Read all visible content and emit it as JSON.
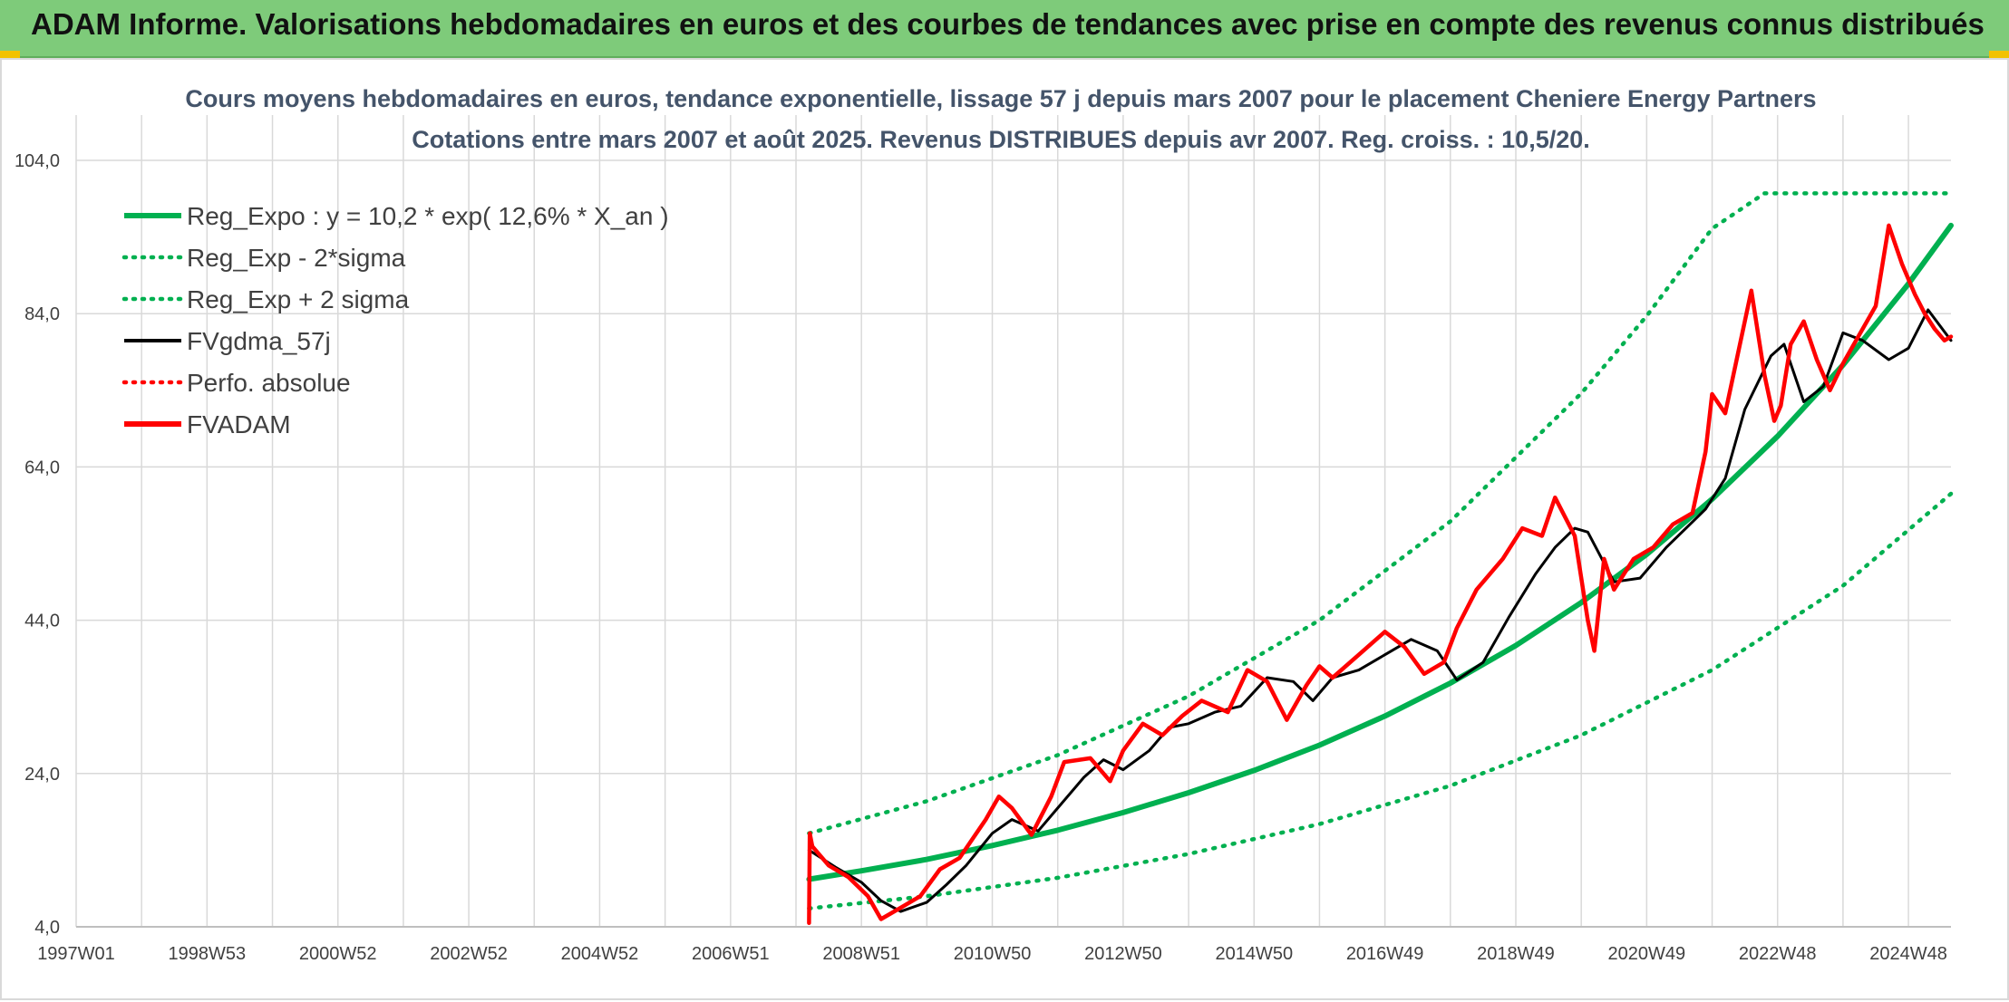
{
  "header": {
    "title": "ADAM Informe. Valorisations hebdomadaires en euros et des courbes de tendances avec prise en compte des revenus connus distribués"
  },
  "colors": {
    "header_bg": "#7ecb7a",
    "regression": "#00b050",
    "smoothed": "#000000",
    "fvadam": "#ff0000",
    "grid": "#d9d9d9"
  },
  "chart_data": {
    "type": "line",
    "title": "Cours moyens hebdomadaires en euros, tendance exponentielle, lissage 57 j depuis mars 2007 pour le placement Cheniere Energy Partners",
    "subtitle": "Cotations entre mars 2007 et août 2025. Revenus DISTRIBUES depuis avr 2007. Reg. croiss. : 10,5/20.",
    "xlabel": "",
    "ylabel": "",
    "x_range": [
      1997.0,
      2025.65
    ],
    "ylim": [
      4,
      104
    ],
    "y_ticks": [
      "4,0",
      "24,0",
      "44,0",
      "64,0",
      "84,0",
      "104,0"
    ],
    "y_tick_values": [
      4,
      24,
      44,
      64,
      84,
      104
    ],
    "x_ticks": [
      "1997W01",
      "1998W53",
      "2000W52",
      "2002W52",
      "2004W52",
      "2006W51",
      "2008W51",
      "2010W50",
      "2012W50",
      "2014W50",
      "2016W49",
      "2018W49",
      "2020W49",
      "2022W48",
      "2024W48"
    ],
    "x_tick_positions": [
      1997.0,
      1999.0,
      2001.0,
      2003.0,
      2005.0,
      2007.0,
      2009.0,
      2011.0,
      2013.0,
      2015.0,
      2017.0,
      2019.0,
      2021.0,
      2023.0,
      2025.0
    ],
    "grid": true,
    "legend_position": "top-left",
    "legend": [
      {
        "label": "Reg_Expo : y = 10,2 * exp( 12,6% *  X_an )",
        "color": "#00b050",
        "style": "solid-thick"
      },
      {
        "label": "Reg_Exp - 2*sigma",
        "color": "#00b050",
        "style": "dotted"
      },
      {
        "label": "Reg_Exp + 2 sigma",
        "color": "#00b050",
        "style": "dotted"
      },
      {
        "label": "FVgdma_57j",
        "color": "#000000",
        "style": "solid"
      },
      {
        "label": "Perfo. absolue",
        "color": "#ff0000",
        "style": "dotted"
      },
      {
        "label": "FVADAM",
        "color": "#ff0000",
        "style": "solid-thick"
      }
    ],
    "series": [
      {
        "name": "Reg_Expo : y = 10,2 * exp( 12,6% *  X_an )",
        "x": [
          2008.2,
          2009,
          2010,
          2011,
          2012,
          2013,
          2014,
          2015,
          2016,
          2017,
          2018,
          2019,
          2020,
          2021,
          2022,
          2023,
          2024,
          2025,
          2025.65
        ],
        "values": [
          10.2,
          11.3,
          12.8,
          14.6,
          16.6,
          18.9,
          21.5,
          24.4,
          27.7,
          31.5,
          35.8,
          40.7,
          46.3,
          52.6,
          59.8,
          68.0,
          77.3,
          87.9,
          95.5
        ]
      },
      {
        "name": "Reg_Exp - 2*sigma",
        "x": [
          2008.2,
          2010,
          2012,
          2014,
          2016,
          2018,
          2020,
          2022,
          2024,
          2025.65
        ],
        "values": [
          6.4,
          8.0,
          10.4,
          13.5,
          17.4,
          22.4,
          29.0,
          37.5,
          48.5,
          60.5
        ]
      },
      {
        "name": "Reg_Exp + 2 sigma",
        "x": [
          2008.2,
          2010,
          2012,
          2014,
          2016,
          2018,
          2020,
          2021,
          2022,
          2022.8,
          2025.65
        ],
        "values": [
          16.2,
          20.4,
          26.4,
          34.1,
          44.0,
          56.9,
          73.6,
          83.7,
          95.1,
          99.7,
          99.7
        ]
      },
      {
        "name": "FVgdma_57j",
        "x": [
          2008.2,
          2008.6,
          2009.0,
          2009.3,
          2009.6,
          2010.0,
          2010.3,
          2010.6,
          2011.0,
          2011.3,
          2011.7,
          2012.0,
          2012.4,
          2012.7,
          2013.0,
          2013.4,
          2013.7,
          2014.0,
          2014.4,
          2014.8,
          2015.2,
          2015.6,
          2015.9,
          2016.2,
          2016.6,
          2017.0,
          2017.4,
          2017.8,
          2018.1,
          2018.5,
          2018.9,
          2019.3,
          2019.6,
          2019.9,
          2020.1,
          2020.5,
          2020.9,
          2021.3,
          2021.6,
          2021.9,
          2022.2,
          2022.5,
          2022.9,
          2023.1,
          2023.4,
          2023.7,
          2024.0,
          2024.3,
          2024.7,
          2025.0,
          2025.3,
          2025.65
        ],
        "values": [
          14.0,
          11.8,
          9.8,
          7.4,
          6.0,
          7.2,
          9.5,
          12.0,
          16.2,
          18.0,
          16.5,
          19.5,
          23.5,
          25.8,
          24.5,
          27.0,
          30.0,
          30.5,
          32.0,
          32.8,
          36.5,
          36.0,
          33.5,
          36.5,
          37.5,
          39.5,
          41.5,
          40.0,
          36.2,
          38.5,
          44.5,
          50.0,
          53.5,
          56.0,
          55.5,
          49.0,
          49.5,
          53.5,
          56.0,
          58.5,
          62.5,
          71.5,
          78.5,
          80.0,
          72.5,
          74.5,
          81.5,
          80.5,
          78.0,
          79.5,
          84.5,
          80.5
        ]
      },
      {
        "name": "FVADAM",
        "x": [
          2008.2,
          2008.21,
          2008.25,
          2008.5,
          2008.8,
          2009.1,
          2009.3,
          2009.6,
          2009.9,
          2010.2,
          2010.5,
          2010.9,
          2011.1,
          2011.3,
          2011.6,
          2011.9,
          2012.1,
          2012.5,
          2012.8,
          2013.0,
          2013.3,
          2013.6,
          2013.9,
          2014.2,
          2014.6,
          2014.9,
          2015.2,
          2015.5,
          2015.8,
          2016.0,
          2016.2,
          2016.6,
          2017.0,
          2017.3,
          2017.6,
          2017.9,
          2018.1,
          2018.4,
          2018.8,
          2019.1,
          2019.4,
          2019.6,
          2019.9,
          2020.1,
          2020.2,
          2020.35,
          2020.5,
          2020.8,
          2021.1,
          2021.4,
          2021.7,
          2021.9,
          2022.0,
          2022.2,
          2022.4,
          2022.6,
          2022.8,
          2022.95,
          2023.05,
          2023.2,
          2023.4,
          2023.6,
          2023.8,
          2024.0,
          2024.2,
          2024.5,
          2024.7,
          2024.9,
          2025.1,
          2025.25,
          2025.4,
          2025.55,
          2025.65
        ],
        "values": [
          4.5,
          16.2,
          14.5,
          12.0,
          10.5,
          8.0,
          5.0,
          6.5,
          8.0,
          11.5,
          13.0,
          18.0,
          21.0,
          19.5,
          16.0,
          21.0,
          25.5,
          26.0,
          23.0,
          27.0,
          30.5,
          29.0,
          31.5,
          33.5,
          32.0,
          37.5,
          36.0,
          31.0,
          35.5,
          38.0,
          36.5,
          39.5,
          42.5,
          40.5,
          37.0,
          38.5,
          43.0,
          48.0,
          52.0,
          56.0,
          55.0,
          60.0,
          55.0,
          44.0,
          40.0,
          52.0,
          48.0,
          52.0,
          53.5,
          56.5,
          58.0,
          66.0,
          73.5,
          71.0,
          79.0,
          87.0,
          76.0,
          70.0,
          72.0,
          80.0,
          83.0,
          78.0,
          74.0,
          77.5,
          80.5,
          85.0,
          95.5,
          90.5,
          86.5,
          84.0,
          82.0,
          80.5,
          81.0
        ]
      }
    ]
  }
}
